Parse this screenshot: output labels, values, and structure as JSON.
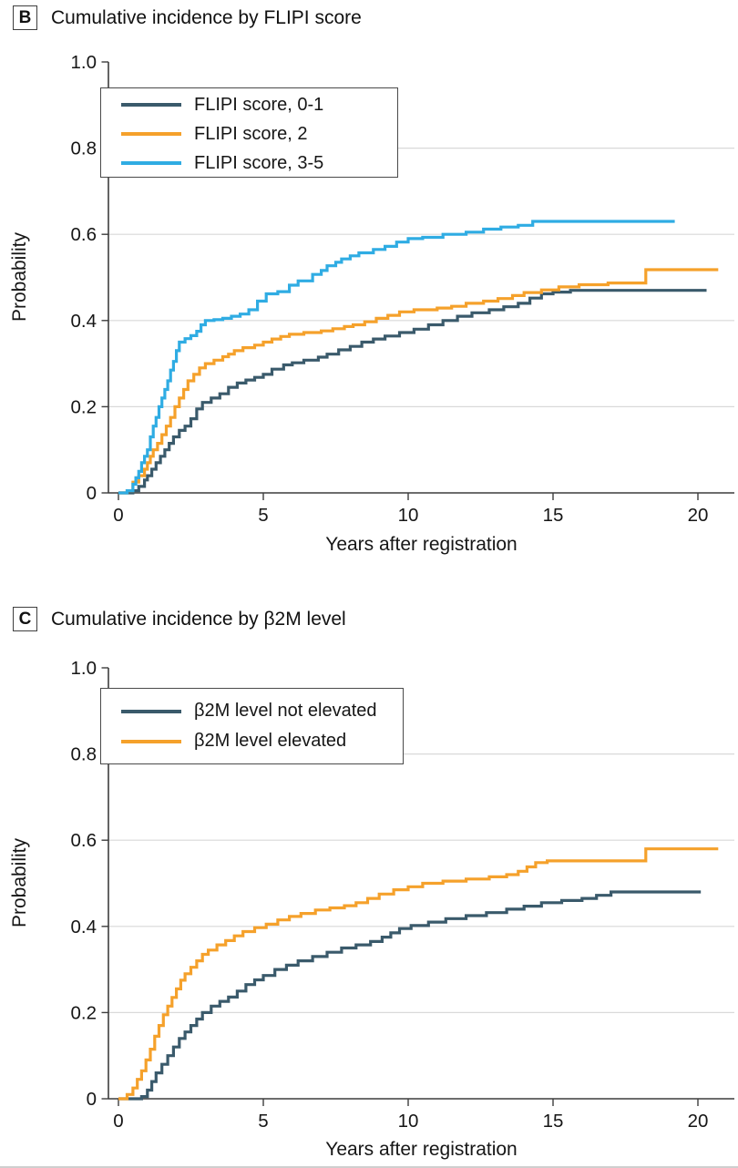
{
  "chart_data": [
    {
      "type": "line",
      "subtype": "step-cumulative-incidence",
      "panel_label": "B",
      "title": "Cumulative incidence by FLIPI score",
      "xlabel": "Years after registration",
      "ylabel": "Probability",
      "xlim": [
        0,
        21.3
      ],
      "ylim": [
        0,
        1.0
      ],
      "xticks": [
        0,
        5,
        10,
        15,
        20
      ],
      "yticks": [
        0,
        0.2,
        0.4,
        0.6,
        0.8,
        1.0
      ],
      "ytick_labels": [
        "0",
        "0.2",
        "0.4",
        "0.6",
        "0.8",
        "1.0"
      ],
      "grid": "horizontal",
      "legend_position": "upper-left",
      "axis_color": "#3d3d3d",
      "grid_color": "#d9d9d9",
      "series": [
        {
          "name": "FLIPI score, 0-1",
          "color": "#3A5A6B",
          "points": [
            [
              0,
              0
            ],
            [
              0.5,
              0.005
            ],
            [
              0.7,
              0.015
            ],
            [
              0.9,
              0.03
            ],
            [
              1.0,
              0.04
            ],
            [
              1.15,
              0.055
            ],
            [
              1.3,
              0.07
            ],
            [
              1.45,
              0.085
            ],
            [
              1.6,
              0.1
            ],
            [
              1.75,
              0.115
            ],
            [
              1.9,
              0.13
            ],
            [
              2.1,
              0.145
            ],
            [
              2.3,
              0.155
            ],
            [
              2.5,
              0.172
            ],
            [
              2.7,
              0.195
            ],
            [
              2.9,
              0.21
            ],
            [
              3.2,
              0.22
            ],
            [
              3.5,
              0.23
            ],
            [
              3.8,
              0.245
            ],
            [
              4.1,
              0.255
            ],
            [
              4.4,
              0.262
            ],
            [
              4.7,
              0.268
            ],
            [
              5.0,
              0.275
            ],
            [
              5.3,
              0.287
            ],
            [
              5.7,
              0.297
            ],
            [
              6.0,
              0.302
            ],
            [
              6.4,
              0.308
            ],
            [
              6.9,
              0.315
            ],
            [
              7.2,
              0.322
            ],
            [
              7.6,
              0.332
            ],
            [
              8.0,
              0.34
            ],
            [
              8.4,
              0.35
            ],
            [
              8.8,
              0.357
            ],
            [
              9.2,
              0.364
            ],
            [
              9.7,
              0.372
            ],
            [
              10.2,
              0.38
            ],
            [
              10.7,
              0.39
            ],
            [
              11.2,
              0.4
            ],
            [
              11.7,
              0.41
            ],
            [
              12.2,
              0.418
            ],
            [
              12.8,
              0.425
            ],
            [
              13.3,
              0.432
            ],
            [
              13.8,
              0.44
            ],
            [
              14.2,
              0.452
            ],
            [
              14.6,
              0.462
            ],
            [
              15.0,
              0.466
            ],
            [
              15.6,
              0.47
            ],
            [
              20.3,
              0.47
            ]
          ]
        },
        {
          "name": "FLIPI score, 2",
          "color": "#F5A12B",
          "points": [
            [
              0,
              0
            ],
            [
              0.3,
              0.005
            ],
            [
              0.5,
              0.025
            ],
            [
              0.7,
              0.04
            ],
            [
              0.9,
              0.055
            ],
            [
              1.0,
              0.07
            ],
            [
              1.1,
              0.085
            ],
            [
              1.2,
              0.1
            ],
            [
              1.35,
              0.115
            ],
            [
              1.5,
              0.135
            ],
            [
              1.65,
              0.155
            ],
            [
              1.8,
              0.175
            ],
            [
              1.95,
              0.2
            ],
            [
              2.1,
              0.22
            ],
            [
              2.25,
              0.24
            ],
            [
              2.4,
              0.26
            ],
            [
              2.6,
              0.275
            ],
            [
              2.8,
              0.29
            ],
            [
              3.0,
              0.3
            ],
            [
              3.3,
              0.308
            ],
            [
              3.6,
              0.316
            ],
            [
              3.8,
              0.322
            ],
            [
              4.0,
              0.33
            ],
            [
              4.3,
              0.337
            ],
            [
              4.7,
              0.343
            ],
            [
              5.0,
              0.35
            ],
            [
              5.3,
              0.357
            ],
            [
              5.6,
              0.363
            ],
            [
              5.9,
              0.368
            ],
            [
              6.4,
              0.372
            ],
            [
              7.0,
              0.376
            ],
            [
              7.4,
              0.381
            ],
            [
              7.8,
              0.386
            ],
            [
              8.1,
              0.39
            ],
            [
              8.5,
              0.397
            ],
            [
              8.9,
              0.405
            ],
            [
              9.3,
              0.412
            ],
            [
              9.7,
              0.42
            ],
            [
              10.2,
              0.425
            ],
            [
              11.0,
              0.429
            ],
            [
              11.5,
              0.433
            ],
            [
              12.0,
              0.44
            ],
            [
              12.6,
              0.445
            ],
            [
              13.1,
              0.451
            ],
            [
              13.6,
              0.458
            ],
            [
              14.0,
              0.465
            ],
            [
              14.6,
              0.471
            ],
            [
              15.2,
              0.478
            ],
            [
              15.9,
              0.483
            ],
            [
              16.9,
              0.487
            ],
            [
              18.2,
              0.518
            ],
            [
              20.7,
              0.518
            ]
          ]
        },
        {
          "name": "FLIPI score, 3-5",
          "color": "#2FACE3",
          "points": [
            [
              0,
              0
            ],
            [
              0.3,
              0.005
            ],
            [
              0.5,
              0.02
            ],
            [
              0.6,
              0.035
            ],
            [
              0.7,
              0.05
            ],
            [
              0.8,
              0.07
            ],
            [
              0.9,
              0.085
            ],
            [
              1.0,
              0.1
            ],
            [
              1.1,
              0.13
            ],
            [
              1.2,
              0.155
            ],
            [
              1.3,
              0.175
            ],
            [
              1.4,
              0.2
            ],
            [
              1.5,
              0.22
            ],
            [
              1.6,
              0.24
            ],
            [
              1.7,
              0.26
            ],
            [
              1.8,
              0.285
            ],
            [
              1.9,
              0.305
            ],
            [
              2.0,
              0.33
            ],
            [
              2.1,
              0.35
            ],
            [
              2.3,
              0.358
            ],
            [
              2.5,
              0.365
            ],
            [
              2.7,
              0.375
            ],
            [
              2.85,
              0.39
            ],
            [
              3.0,
              0.4
            ],
            [
              3.3,
              0.402
            ],
            [
              3.6,
              0.405
            ],
            [
              3.9,
              0.41
            ],
            [
              4.2,
              0.415
            ],
            [
              4.5,
              0.425
            ],
            [
              4.8,
              0.445
            ],
            [
              5.1,
              0.462
            ],
            [
              5.5,
              0.467
            ],
            [
              5.9,
              0.482
            ],
            [
              6.2,
              0.492
            ],
            [
              6.7,
              0.507
            ],
            [
              7.0,
              0.516
            ],
            [
              7.2,
              0.527
            ],
            [
              7.5,
              0.535
            ],
            [
              7.7,
              0.543
            ],
            [
              8.0,
              0.55
            ],
            [
              8.3,
              0.557
            ],
            [
              8.8,
              0.565
            ],
            [
              9.2,
              0.572
            ],
            [
              9.6,
              0.582
            ],
            [
              10.0,
              0.59
            ],
            [
              10.5,
              0.593
            ],
            [
              11.2,
              0.6
            ],
            [
              12.0,
              0.605
            ],
            [
              12.6,
              0.612
            ],
            [
              13.2,
              0.617
            ],
            [
              13.8,
              0.621
            ],
            [
              14.3,
              0.63
            ],
            [
              19.2,
              0.63
            ]
          ]
        }
      ]
    },
    {
      "type": "line",
      "subtype": "step-cumulative-incidence",
      "panel_label": "C",
      "title": "Cumulative incidence by β2M level",
      "xlabel": "Years after registration",
      "ylabel": "Probability",
      "xlim": [
        0,
        21.3
      ],
      "ylim": [
        0,
        1.0
      ],
      "xticks": [
        0,
        5,
        10,
        15,
        20
      ],
      "yticks": [
        0,
        0.2,
        0.4,
        0.6,
        0.8,
        1.0
      ],
      "ytick_labels": [
        "0",
        "0.2",
        "0.4",
        "0.6",
        "0.8",
        "1.0"
      ],
      "grid": "horizontal",
      "legend_position": "upper-left",
      "axis_color": "#3d3d3d",
      "grid_color": "#d9d9d9",
      "series": [
        {
          "name": "β2M level not elevated",
          "color": "#3A5A6B",
          "points": [
            [
              0,
              0
            ],
            [
              0.8,
              0.005
            ],
            [
              1.0,
              0.02
            ],
            [
              1.15,
              0.04
            ],
            [
              1.3,
              0.06
            ],
            [
              1.5,
              0.08
            ],
            [
              1.7,
              0.1
            ],
            [
              1.9,
              0.12
            ],
            [
              2.1,
              0.14
            ],
            [
              2.3,
              0.155
            ],
            [
              2.5,
              0.17
            ],
            [
              2.7,
              0.185
            ],
            [
              2.9,
              0.2
            ],
            [
              3.2,
              0.215
            ],
            [
              3.5,
              0.226
            ],
            [
              3.8,
              0.236
            ],
            [
              4.1,
              0.25
            ],
            [
              4.4,
              0.265
            ],
            [
              4.7,
              0.276
            ],
            [
              5.0,
              0.286
            ],
            [
              5.4,
              0.3
            ],
            [
              5.8,
              0.31
            ],
            [
              6.2,
              0.32
            ],
            [
              6.7,
              0.33
            ],
            [
              7.2,
              0.34
            ],
            [
              7.7,
              0.35
            ],
            [
              8.2,
              0.357
            ],
            [
              8.7,
              0.365
            ],
            [
              9.1,
              0.375
            ],
            [
              9.4,
              0.385
            ],
            [
              9.7,
              0.395
            ],
            [
              10.1,
              0.402
            ],
            [
              10.7,
              0.41
            ],
            [
              11.3,
              0.418
            ],
            [
              12.0,
              0.425
            ],
            [
              12.7,
              0.432
            ],
            [
              13.4,
              0.44
            ],
            [
              14.0,
              0.447
            ],
            [
              14.6,
              0.455
            ],
            [
              15.3,
              0.46
            ],
            [
              16.0,
              0.465
            ],
            [
              16.5,
              0.472
            ],
            [
              17.0,
              0.48
            ],
            [
              20.1,
              0.48
            ]
          ]
        },
        {
          "name": "β2M level elevated",
          "color": "#F5A12B",
          "points": [
            [
              0,
              0
            ],
            [
              0.3,
              0.01
            ],
            [
              0.5,
              0.025
            ],
            [
              0.65,
              0.045
            ],
            [
              0.8,
              0.065
            ],
            [
              0.95,
              0.09
            ],
            [
              1.1,
              0.115
            ],
            [
              1.25,
              0.145
            ],
            [
              1.4,
              0.17
            ],
            [
              1.55,
              0.195
            ],
            [
              1.7,
              0.215
            ],
            [
              1.85,
              0.235
            ],
            [
              2.0,
              0.255
            ],
            [
              2.15,
              0.275
            ],
            [
              2.3,
              0.29
            ],
            [
              2.5,
              0.305
            ],
            [
              2.7,
              0.32
            ],
            [
              2.9,
              0.335
            ],
            [
              3.1,
              0.345
            ],
            [
              3.4,
              0.357
            ],
            [
              3.7,
              0.367
            ],
            [
              4.0,
              0.378
            ],
            [
              4.3,
              0.388
            ],
            [
              4.7,
              0.397
            ],
            [
              5.1,
              0.405
            ],
            [
              5.5,
              0.415
            ],
            [
              5.9,
              0.423
            ],
            [
              6.3,
              0.43
            ],
            [
              6.8,
              0.438
            ],
            [
              7.3,
              0.443
            ],
            [
              7.8,
              0.448
            ],
            [
              8.2,
              0.455
            ],
            [
              8.6,
              0.465
            ],
            [
              9.0,
              0.475
            ],
            [
              9.5,
              0.485
            ],
            [
              10.0,
              0.492
            ],
            [
              10.5,
              0.5
            ],
            [
              11.2,
              0.505
            ],
            [
              12.0,
              0.51
            ],
            [
              12.8,
              0.515
            ],
            [
              13.4,
              0.52
            ],
            [
              13.8,
              0.528
            ],
            [
              14.1,
              0.538
            ],
            [
              14.4,
              0.548
            ],
            [
              14.8,
              0.552
            ],
            [
              18.2,
              0.58
            ],
            [
              20.7,
              0.58
            ]
          ]
        }
      ]
    }
  ]
}
